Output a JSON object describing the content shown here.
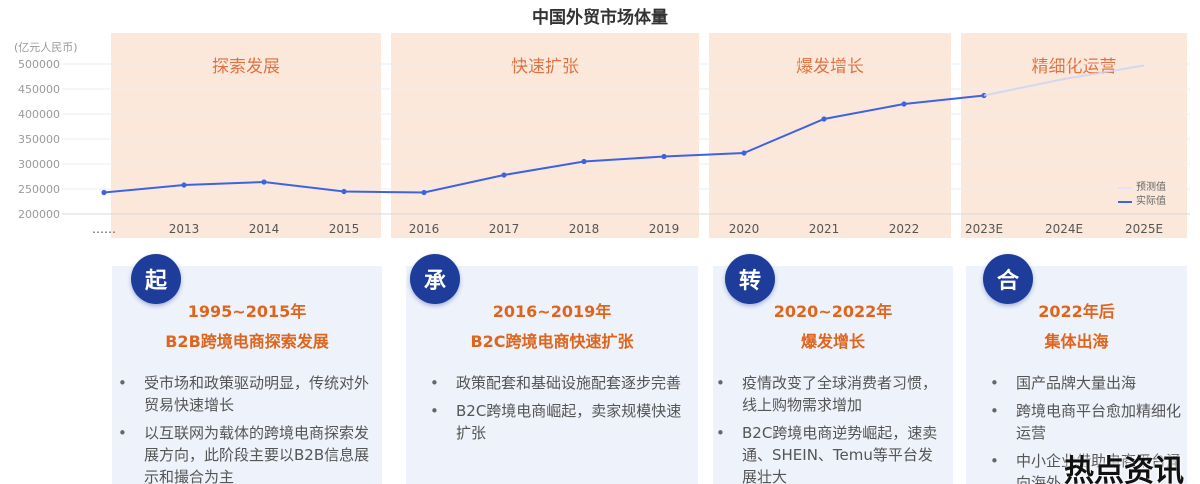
{
  "title": "中国外贸市场体量",
  "yunit": "(亿元人民币)",
  "phases": [
    {
      "label": "探索发展"
    },
    {
      "label": "快速扩张"
    },
    {
      "label": "爆发增长"
    },
    {
      "label": "精细化运营"
    }
  ],
  "legend": {
    "forecast": "预测值",
    "actual": "实际值"
  },
  "colors": {
    "actual": "#3f63e0",
    "forecast": "#c9d3f3",
    "accent": "#e0651c",
    "badge": "#1e3c9a",
    "phase": "#fad6be"
  },
  "chart_data": {
    "type": "line",
    "title": "中国外贸市场体量",
    "ylabel": "(亿元人民币)",
    "ylim": [
      200000,
      500000
    ],
    "yticks": [
      200000,
      250000,
      300000,
      350000,
      400000,
      450000,
      500000
    ],
    "categories": [
      "……",
      "2013",
      "2014",
      "2015",
      "2016",
      "2017",
      "2018",
      "2019",
      "2020",
      "2021",
      "2022",
      "2023E",
      "2024E",
      "2025E"
    ],
    "series": [
      {
        "name": "实际值",
        "values": [
          243000,
          258000,
          264000,
          245000,
          243000,
          278000,
          305000,
          315000,
          322000,
          390000,
          420000,
          437000,
          null,
          null
        ]
      },
      {
        "name": "预测值",
        "values": [
          null,
          null,
          null,
          null,
          null,
          null,
          null,
          null,
          null,
          null,
          null,
          437000,
          470000,
          497000
        ]
      }
    ],
    "legend_position": "right"
  },
  "cards": [
    {
      "badge": "起",
      "date": "1995~2015年",
      "subtitle": "B2B跨境电商探索发展",
      "bullets": [
        "受市场和政策驱动明显，传统对外贸易快速增长",
        "以互联网为载体的跨境电商探索发展方向，此阶段主要以B2B信息展示和撮合为主"
      ]
    },
    {
      "badge": "承",
      "date": "2016~2019年",
      "subtitle": "B2C跨境电商快速扩张",
      "bullets": [
        "政策配套和基础设施配套逐步完善",
        "B2C跨境电商崛起，卖家规模快速扩张"
      ]
    },
    {
      "badge": "转",
      "date": "2020~2022年",
      "subtitle": "爆发增长",
      "bullets": [
        "疫情改变了全球消费者习惯，线上购物需求增加",
        "B2C跨境电商逆势崛起，速卖通、SHEIN、Temu等平台发展壮大"
      ]
    },
    {
      "badge": "合",
      "date": "2022年后",
      "subtitle": "集体出海",
      "bullets": [
        "国产品牌大量出海",
        "跨境电商平台愈加精细化运营",
        "中小企业借助电商平台涌向海外"
      ]
    }
  ],
  "watermark": "热点资讯"
}
